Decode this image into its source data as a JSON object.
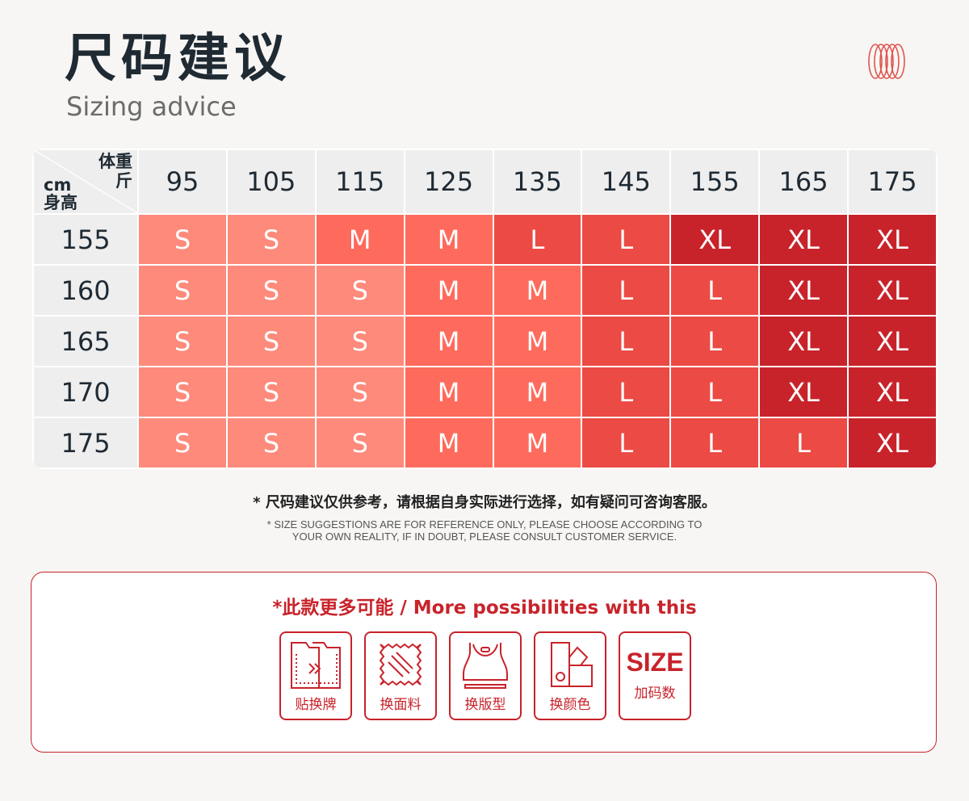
{
  "header": {
    "title": "尺码建议",
    "subtitle": "Sizing advice"
  },
  "table": {
    "corner": {
      "weight_label": "体重",
      "weight_unit": "斤",
      "height_unit": "cm",
      "height_label": "身高"
    },
    "weights": [
      "95",
      "105",
      "115",
      "125",
      "135",
      "145",
      "155",
      "165",
      "175"
    ],
    "rows": [
      {
        "height": "155",
        "sizes": [
          "S",
          "S",
          "M",
          "M",
          "L",
          "L",
          "XL",
          "XL",
          "XL"
        ]
      },
      {
        "height": "160",
        "sizes": [
          "S",
          "S",
          "S",
          "M",
          "M",
          "L",
          "L",
          "XL",
          "XL"
        ]
      },
      {
        "height": "165",
        "sizes": [
          "S",
          "S",
          "S",
          "M",
          "M",
          "L",
          "L",
          "XL",
          "XL"
        ]
      },
      {
        "height": "170",
        "sizes": [
          "S",
          "S",
          "S",
          "M",
          "M",
          "L",
          "L",
          "XL",
          "XL"
        ]
      },
      {
        "height": "175",
        "sizes": [
          "S",
          "S",
          "S",
          "M",
          "M",
          "L",
          "L",
          "L",
          "XL"
        ]
      }
    ],
    "size_colors": {
      "S": "#fe8a7b",
      "M": "#fe6b5d",
      "L": "#ec4a44",
      "XL": "#c8232b"
    }
  },
  "notes": {
    "cn": "* 尺码建议仅供参考，请根据自身实际进行选择，如有疑问可咨询客服。",
    "en_line1": "* SIZE SUGGESTIONS ARE FOR REFERENCE ONLY, PLEASE CHOOSE ACCORDING TO",
    "en_line2": "YOUR OWN REALITY, IF IN DOUBT, PLEASE CONSULT CUSTOMER SERVICE."
  },
  "options": {
    "title": "*此款更多可能 / More possibilities with this",
    "items": [
      {
        "label": "贴换牌",
        "icon": "tag-swap-icon"
      },
      {
        "label": "换面料",
        "icon": "fabric-icon"
      },
      {
        "label": "换版型",
        "icon": "bra-top-icon"
      },
      {
        "label": "换颜色",
        "icon": "color-swatch-icon"
      },
      {
        "label": "加码数",
        "icon": "size-icon",
        "text": "SIZE"
      }
    ]
  }
}
